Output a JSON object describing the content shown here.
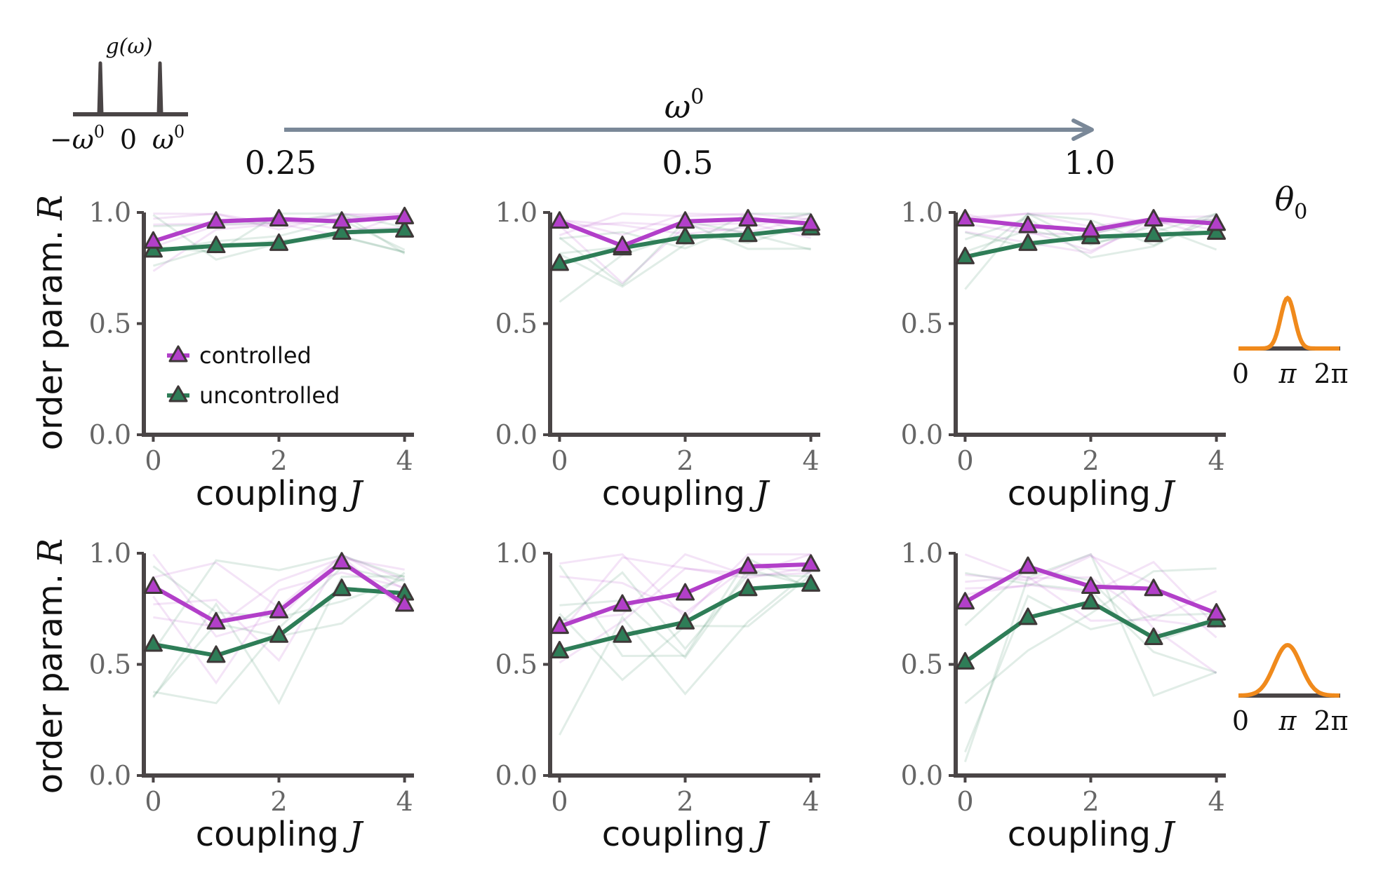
{
  "colors": {
    "controlled": "#B23FC9",
    "uncontrolled": "#2E7D57",
    "axis": "#4A4546",
    "arrow": "#7A8898",
    "theta": "#F08A1C",
    "inset": "#4A4546"
  },
  "header": {
    "omega_symbol": "ω",
    "omega_superscript": "0",
    "column_values": [
      "0.25",
      "0.5",
      "1.0"
    ],
    "theta_symbol": "θ",
    "theta_subscript": "0"
  },
  "g_inset": {
    "label": "g(ω)",
    "tick_neg": "−ω",
    "tick_zero": "0",
    "tick_pos": "ω",
    "superscript": "0"
  },
  "theta_insets": {
    "tick_labels": [
      "0",
      "π",
      "2π"
    ],
    "widths": [
      "narrow",
      "wide"
    ]
  },
  "axes": {
    "y_label_text": "order param.",
    "y_label_symbol": "R",
    "x_label_text": "coupling",
    "x_label_symbol": "J",
    "y_ticks": [
      "0.0",
      "0.5",
      "1.0"
    ],
    "x_ticks": [
      "0",
      "2",
      "4"
    ]
  },
  "legend": {
    "entries": [
      "controlled",
      "uncontrolled"
    ]
  },
  "chart_data": [
    {
      "type": "line",
      "row": 0,
      "col": 0,
      "x": [
        0,
        1,
        2,
        3,
        4
      ],
      "xlim": [
        -0.15,
        4.15
      ],
      "ylim": [
        0,
        1
      ],
      "series": [
        {
          "name": "controlled",
          "values": [
            0.87,
            0.96,
            0.97,
            0.96,
            0.98
          ]
        },
        {
          "name": "uncontrolled",
          "values": [
            0.83,
            0.85,
            0.86,
            0.91,
            0.92
          ]
        }
      ]
    },
    {
      "type": "line",
      "row": 0,
      "col": 1,
      "x": [
        0,
        1,
        2,
        3,
        4
      ],
      "xlim": [
        -0.15,
        4.15
      ],
      "ylim": [
        0,
        1
      ],
      "series": [
        {
          "name": "controlled",
          "values": [
            0.96,
            0.85,
            0.96,
            0.97,
            0.95
          ]
        },
        {
          "name": "uncontrolled",
          "values": [
            0.77,
            0.84,
            0.89,
            0.9,
            0.93
          ]
        }
      ]
    },
    {
      "type": "line",
      "row": 0,
      "col": 2,
      "x": [
        0,
        1,
        2,
        3,
        4
      ],
      "xlim": [
        -0.15,
        4.15
      ],
      "ylim": [
        0,
        1
      ],
      "series": [
        {
          "name": "controlled",
          "values": [
            0.97,
            0.94,
            0.92,
            0.97,
            0.95
          ]
        },
        {
          "name": "uncontrolled",
          "values": [
            0.8,
            0.86,
            0.89,
            0.9,
            0.91
          ]
        }
      ]
    },
    {
      "type": "line",
      "row": 1,
      "col": 0,
      "x": [
        0,
        1,
        2,
        3,
        4
      ],
      "xlim": [
        -0.15,
        4.15
      ],
      "ylim": [
        0,
        1
      ],
      "series": [
        {
          "name": "controlled",
          "values": [
            0.85,
            0.69,
            0.74,
            0.96,
            0.77
          ]
        },
        {
          "name": "uncontrolled",
          "values": [
            0.59,
            0.54,
            0.63,
            0.84,
            0.82
          ]
        }
      ]
    },
    {
      "type": "line",
      "row": 1,
      "col": 1,
      "x": [
        0,
        1,
        2,
        3,
        4
      ],
      "xlim": [
        -0.15,
        4.15
      ],
      "ylim": [
        0,
        1
      ],
      "series": [
        {
          "name": "controlled",
          "values": [
            0.67,
            0.77,
            0.82,
            0.94,
            0.95
          ]
        },
        {
          "name": "uncontrolled",
          "values": [
            0.56,
            0.63,
            0.69,
            0.84,
            0.86
          ]
        }
      ]
    },
    {
      "type": "line",
      "row": 1,
      "col": 2,
      "x": [
        0,
        1,
        2,
        3,
        4
      ],
      "xlim": [
        -0.15,
        4.15
      ],
      "ylim": [
        0,
        1
      ],
      "series": [
        {
          "name": "controlled",
          "values": [
            0.78,
            0.94,
            0.85,
            0.84,
            0.73
          ]
        },
        {
          "name": "uncontrolled",
          "values": [
            0.51,
            0.71,
            0.78,
            0.62,
            0.7
          ]
        }
      ]
    }
  ]
}
